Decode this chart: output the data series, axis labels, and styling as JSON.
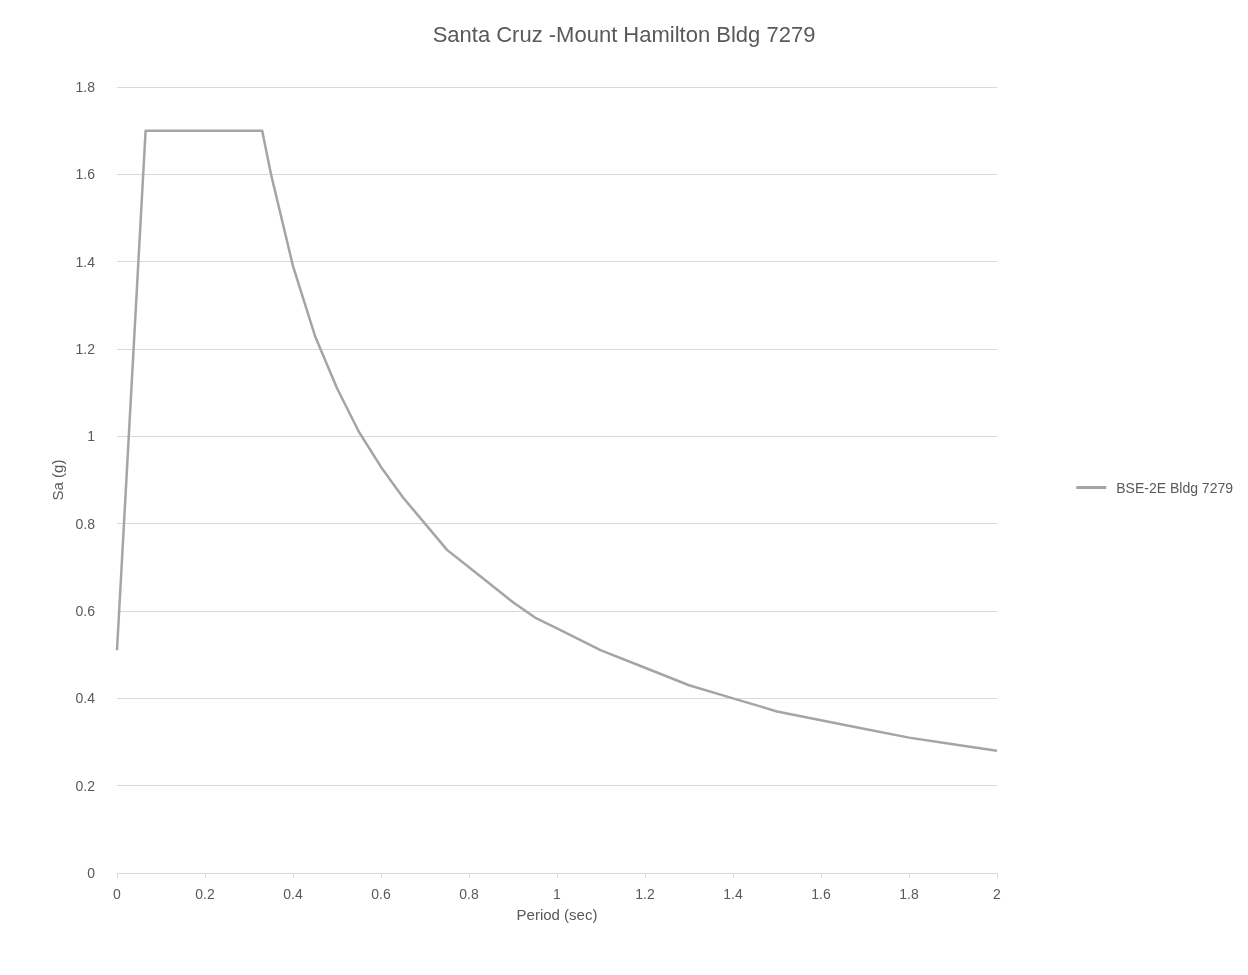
{
  "chart_data": {
    "type": "line",
    "title": "Santa Cruz -Mount Hamilton Bldg 7279",
    "xlabel": "Period (sec)",
    "ylabel": "Sa (g)",
    "x": [
      0,
      0.065,
      0.33,
      0.35,
      0.4,
      0.45,
      0.5,
      0.55,
      0.6,
      0.65,
      0.7,
      0.75,
      0.8,
      0.85,
      0.9,
      0.95,
      1.0,
      1.1,
      1.2,
      1.3,
      1.4,
      1.5,
      1.6,
      1.7,
      1.8,
      1.9,
      2.0
    ],
    "series": [
      {
        "name": "BSE-2E Bldg 7279",
        "color": "#a5a5a5",
        "values": [
          0.51,
          1.7,
          1.7,
          1.6,
          1.39,
          1.23,
          1.11,
          1.01,
          0.93,
          0.86,
          0.8,
          0.74,
          0.7,
          0.66,
          0.62,
          0.585,
          0.56,
          0.51,
          0.47,
          0.43,
          0.4,
          0.37,
          0.35,
          0.33,
          0.31,
          0.295,
          0.28
        ]
      }
    ],
    "xlim": [
      0,
      2
    ],
    "xticks": [
      0,
      0.2,
      0.4,
      0.6,
      0.8,
      1,
      1.2,
      1.4,
      1.6,
      1.8,
      2
    ],
    "ylim": [
      0,
      1.8
    ],
    "yticks": [
      0,
      0.2,
      0.4,
      0.6,
      0.8,
      1,
      1.2,
      1.4,
      1.6,
      1.8
    ],
    "grid": "y",
    "legend": "right",
    "marker": "none",
    "line_style": "solid"
  }
}
